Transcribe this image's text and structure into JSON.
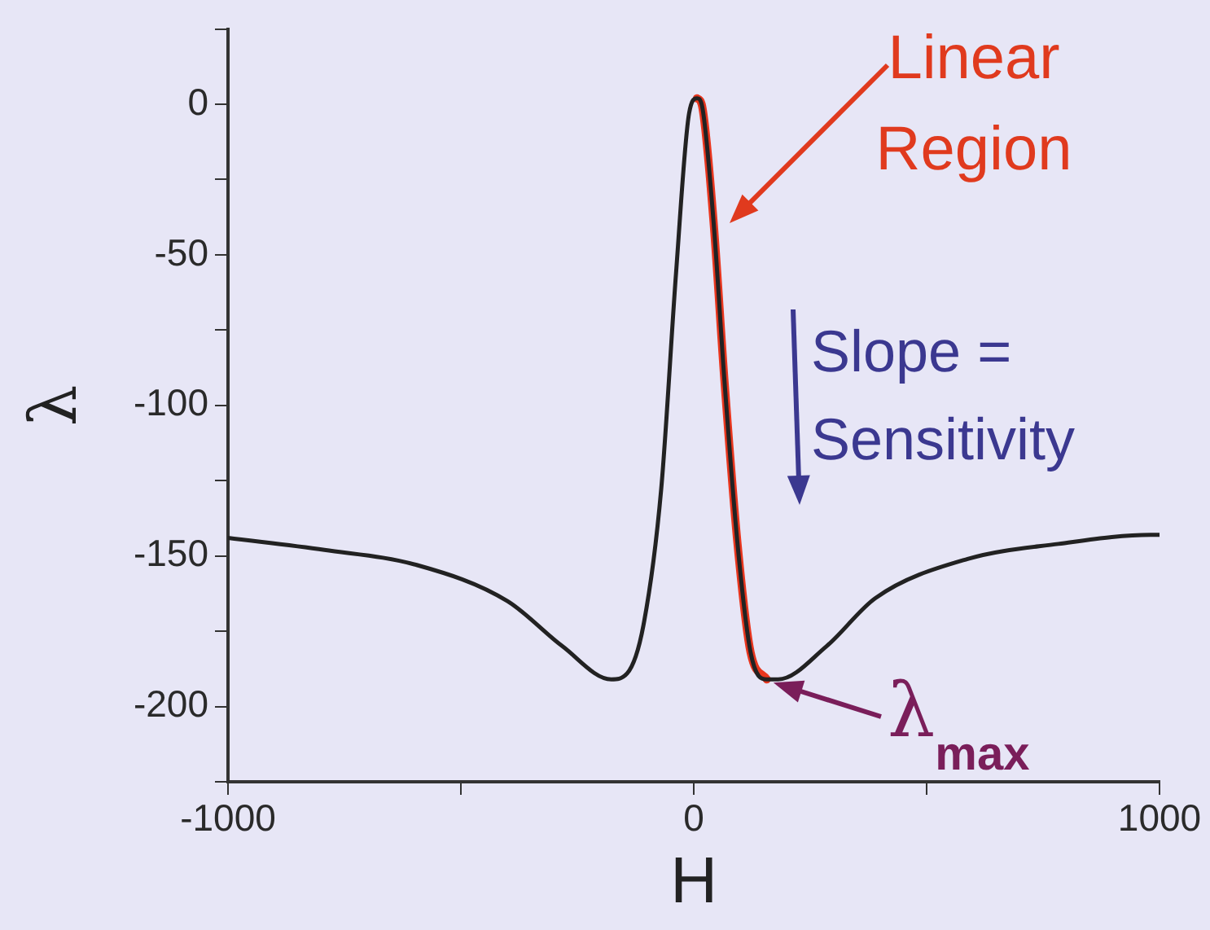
{
  "chart_data": {
    "type": "line",
    "xlabel": "H",
    "ylabel": "λ",
    "series": [
      {
        "color": "#222222",
        "x": [
          -1000,
          -793,
          -595,
          -400,
          -282,
          -177,
          -143,
          -108,
          -70,
          -38,
          -10,
          7,
          17,
          42,
          66,
          94,
          122,
          157,
          181,
          285,
          390,
          588,
          783,
          981,
          1000
        ],
        "values": [
          -144,
          -148,
          -153,
          -165,
          -180,
          -191,
          -189,
          -173,
          -128,
          -56,
          -3,
          2,
          0,
          -38,
          -92,
          -146,
          -182,
          -191,
          -191,
          -180,
          -164,
          -151,
          -146,
          -143,
          -143
        ]
      },
      {
        "color": "#e8361e",
        "x": [
          7,
          17,
          42,
          66,
          94,
          122,
          157
        ],
        "values": [
          2,
          0,
          -38,
          -92,
          -146,
          -182,
          -191
        ]
      }
    ],
    "xlim": [
      -1000,
      1000
    ],
    "xticks": [
      -1000,
      {
        "value": -500,
        "label": null
      },
      0,
      {
        "value": 500,
        "label": null
      },
      1000
    ],
    "ylim": [
      -225,
      25
    ],
    "yticks": [
      {
        "value": 25,
        "label": null
      },
      0,
      {
        "value": -25,
        "label": null
      },
      -50,
      {
        "value": -75,
        "label": null
      },
      -100,
      {
        "value": -125,
        "label": null
      },
      -150,
      {
        "value": -175,
        "label": null
      },
      -200,
      {
        "value": -225,
        "label": null
      }
    ],
    "grid": false,
    "legend": false,
    "marker": "none",
    "annotations": [
      "Linear Region",
      "Slope = Sensitivity",
      {
        "text": "λ$_{max}$",
        "x": 157,
        "y": -191
      }
    ]
  }
}
